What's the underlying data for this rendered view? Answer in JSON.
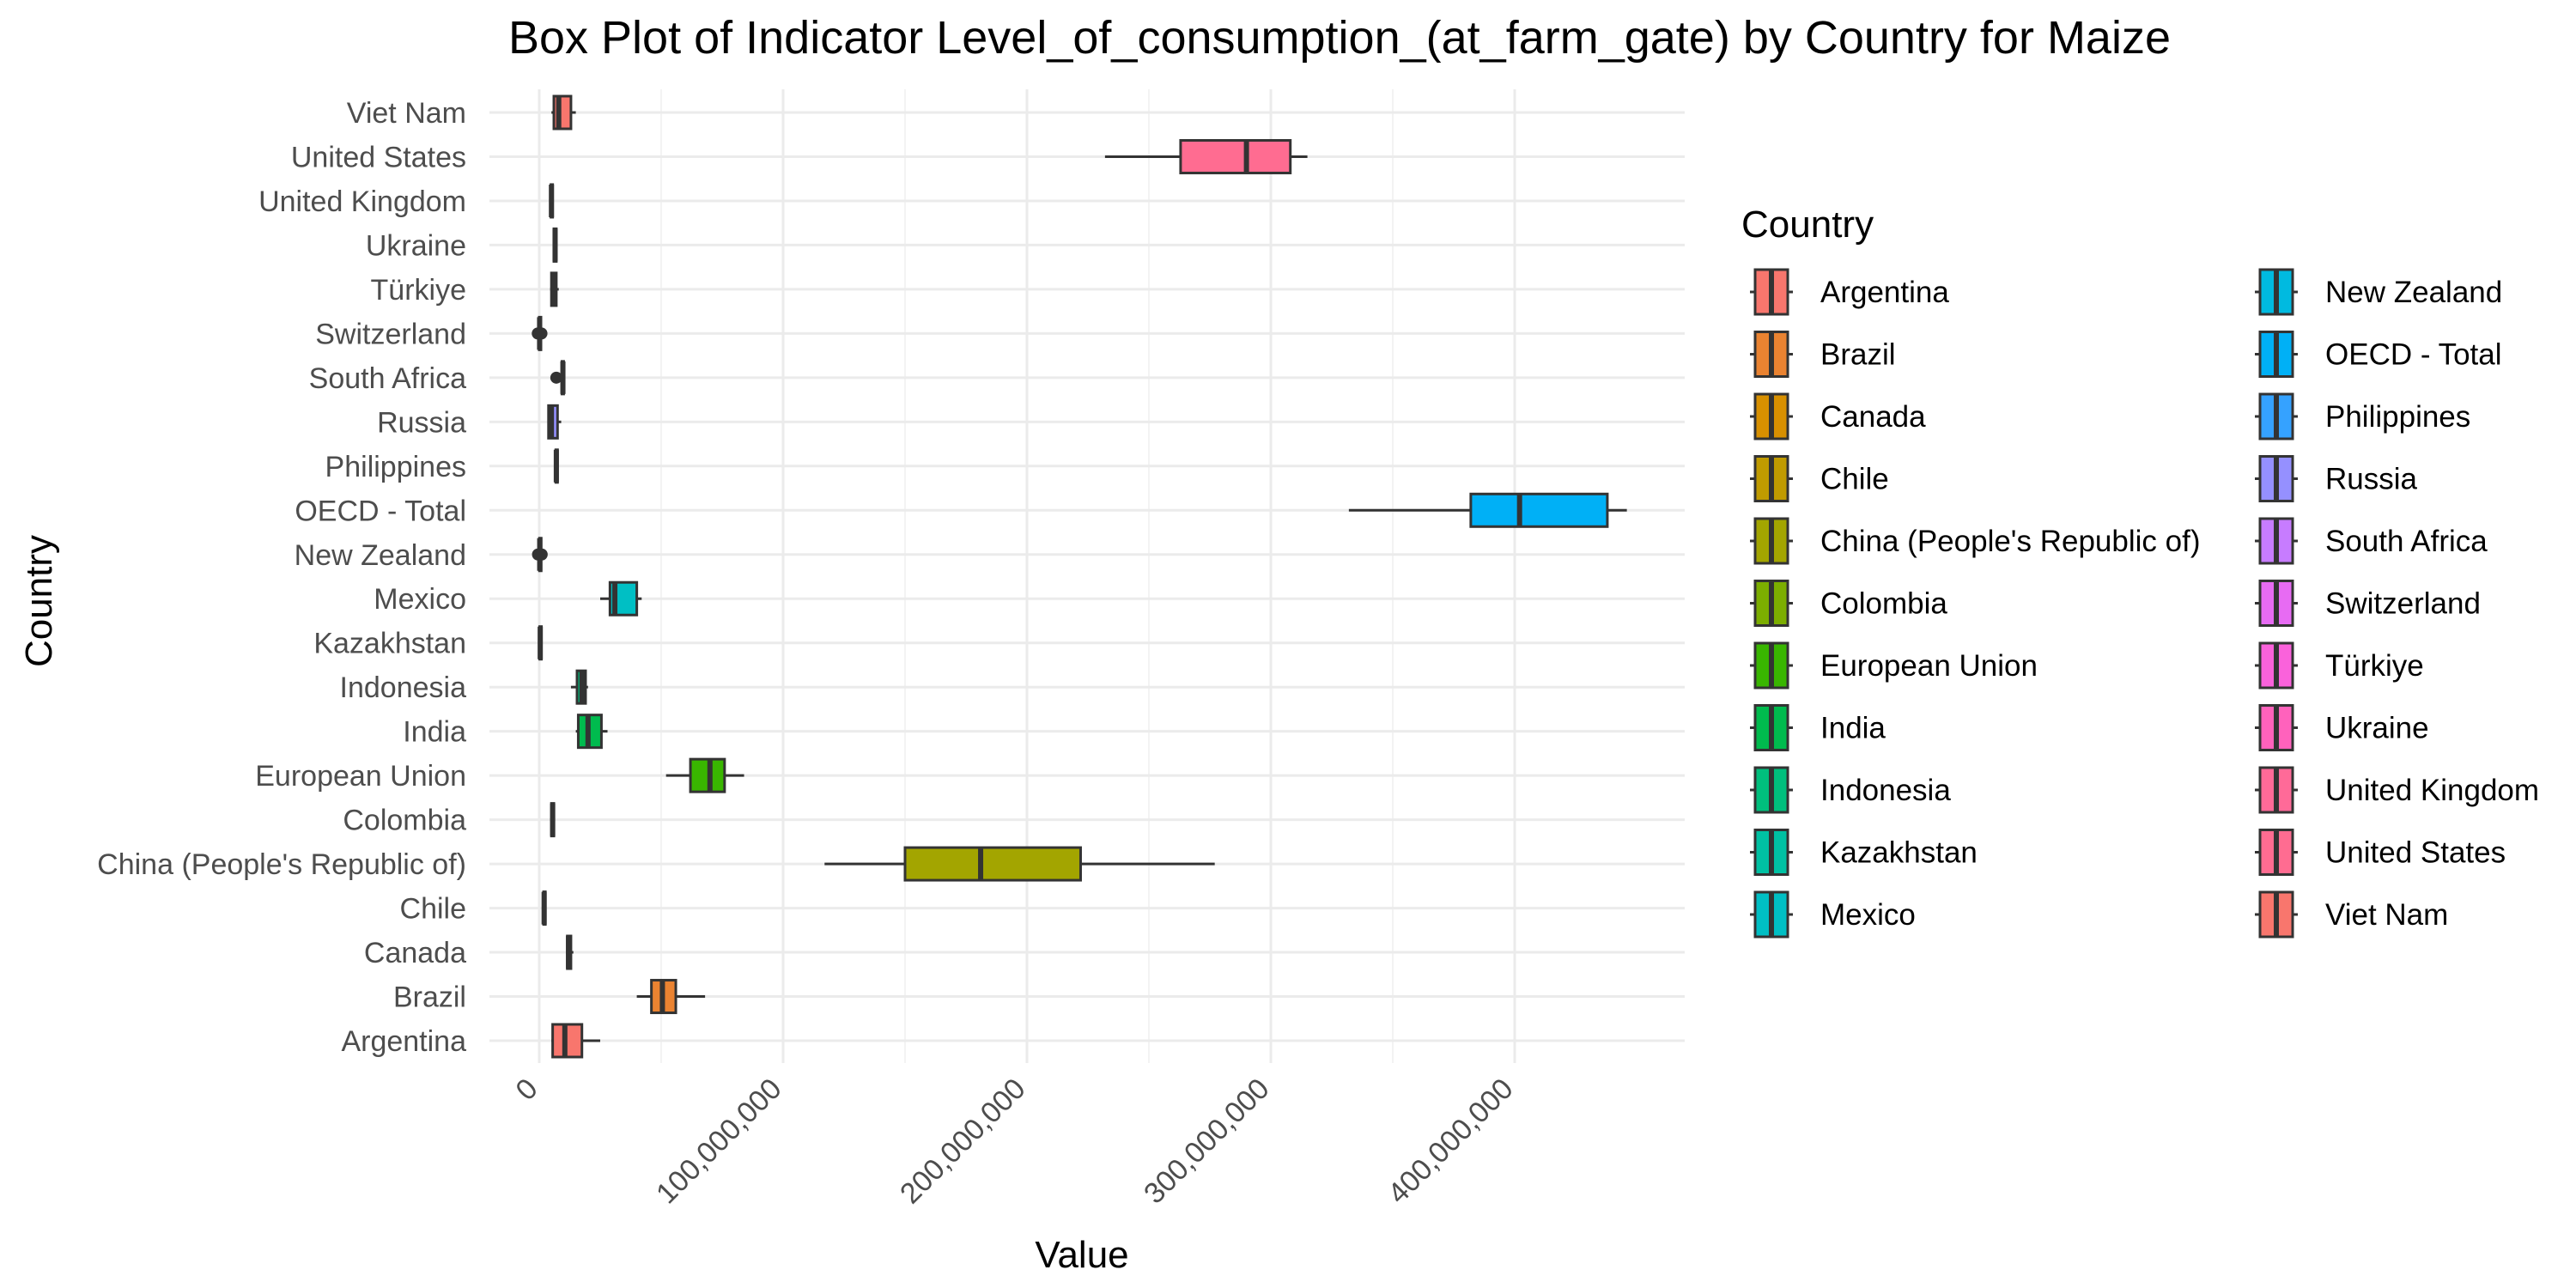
{
  "chart_data": {
    "type": "boxplot",
    "title": "Box Plot of Indicator Level_of_consumption_(at_farm_gate) by Country for Maize",
    "xlabel": "Value",
    "ylabel": "Country",
    "xlim": [
      -10000000,
      470000000
    ],
    "x_ticks": [
      0,
      100000000,
      200000000,
      300000000,
      400000000
    ],
    "x_tick_labels": [
      "0",
      "100,000,000",
      "200,000,000",
      "300,000,000",
      "400,000,000"
    ],
    "grid": true,
    "legend": {
      "title": "Country",
      "position": "right",
      "columns": 2
    },
    "categories": [
      "Argentina",
      "Brazil",
      "Canada",
      "Chile",
      "China (People's Republic of)",
      "Colombia",
      "European Union",
      "India",
      "Indonesia",
      "Kazakhstan",
      "Mexico",
      "New Zealand",
      "OECD - Total",
      "Philippines",
      "Russia",
      "South Africa",
      "Switzerland",
      "Türkiye",
      "Ukraine",
      "United Kingdom",
      "United States",
      "Viet Nam"
    ],
    "colors": [
      "#F8766D",
      "#EA8331",
      "#D89000",
      "#C09B00",
      "#A3A500",
      "#7CAE00",
      "#39B600",
      "#00BB4E",
      "#00BF7D",
      "#00C1A3",
      "#00BFC4",
      "#00BAE0",
      "#00B0F6",
      "#35A2FF",
      "#9590FF",
      "#C77CFF",
      "#E76BF3",
      "#FA62DB",
      "#FF62BC",
      "#FF6A98",
      "#FF6C91",
      "#F8766D"
    ],
    "series": [
      {
        "name": "Argentina",
        "min": 5000000,
        "q1": 5500000,
        "median": 10500000,
        "q3": 17500000,
        "max": 25000000,
        "outliers": []
      },
      {
        "name": "Brazil",
        "min": 40000000,
        "q1": 46000000,
        "median": 50500000,
        "q3": 56000000,
        "max": 68000000,
        "outliers": []
      },
      {
        "name": "Canada",
        "min": 11000000,
        "q1": 11500000,
        "median": 12000000,
        "q3": 13000000,
        "max": 14000000,
        "outliers": []
      },
      {
        "name": "Chile",
        "min": 1500000,
        "q1": 1800000,
        "median": 2000000,
        "q3": 2200000,
        "max": 2600000,
        "outliers": []
      },
      {
        "name": "China (People's Republic of)",
        "min": 117000000,
        "q1": 150000000,
        "median": 181000000,
        "q3": 222000000,
        "max": 277000000,
        "outliers": []
      },
      {
        "name": "Colombia",
        "min": 4500000,
        "q1": 5000000,
        "median": 5500000,
        "q3": 6000000,
        "max": 6500000,
        "outliers": []
      },
      {
        "name": "European Union",
        "min": 52000000,
        "q1": 62000000,
        "median": 70000000,
        "q3": 76000000,
        "max": 84000000,
        "outliers": []
      },
      {
        "name": "India",
        "min": 15000000,
        "q1": 16000000,
        "median": 20000000,
        "q3": 25500000,
        "max": 28000000,
        "outliers": []
      },
      {
        "name": "Indonesia",
        "min": 13000000,
        "q1": 15500000,
        "median": 17500000,
        "q3": 19000000,
        "max": 20000000,
        "outliers": []
      },
      {
        "name": "Kazakhstan",
        "min": 0,
        "q1": 200000,
        "median": 400000,
        "q3": 600000,
        "max": 900000,
        "outliers": []
      },
      {
        "name": "Mexico",
        "min": 25000000,
        "q1": 29000000,
        "median": 31000000,
        "q3": 40000000,
        "max": 42000000,
        "outliers": []
      },
      {
        "name": "New Zealand",
        "min": 0,
        "q1": 100000,
        "median": 200000,
        "q3": 300000,
        "max": 400000,
        "outliers": [
          -500000,
          1000000
        ]
      },
      {
        "name": "OECD - Total",
        "min": 332000000,
        "q1": 382000000,
        "median": 402000000,
        "q3": 438000000,
        "max": 446000000,
        "outliers": []
      },
      {
        "name": "Philippines",
        "min": 6500000,
        "q1": 6800000,
        "median": 7000000,
        "q3": 7400000,
        "max": 7800000,
        "outliers": []
      },
      {
        "name": "Russia",
        "min": 3500000,
        "q1": 3800000,
        "median": 5000000,
        "q3": 7500000,
        "max": 9000000,
        "outliers": []
      },
      {
        "name": "South Africa",
        "min": 9000000,
        "q1": 9300000,
        "median": 9700000,
        "q3": 10000000,
        "max": 10300000,
        "outliers": [
          7000000
        ]
      },
      {
        "name": "Switzerland",
        "min": -200000,
        "q1": 0,
        "median": 150000,
        "q3": 300000,
        "max": 500000,
        "outliers": [
          -600000,
          900000
        ]
      },
      {
        "name": "Türkiye",
        "min": 4500000,
        "q1": 5000000,
        "median": 6000000,
        "q3": 7000000,
        "max": 8000000,
        "outliers": []
      },
      {
        "name": "Ukraine",
        "min": 5500000,
        "q1": 6000000,
        "median": 6500000,
        "q3": 7000000,
        "max": 7500000,
        "outliers": []
      },
      {
        "name": "United Kingdom",
        "min": 4500000,
        "q1": 4800000,
        "median": 5000000,
        "q3": 5300000,
        "max": 5600000,
        "outliers": []
      },
      {
        "name": "United States",
        "min": 232000000,
        "q1": 263000000,
        "median": 290000000,
        "q3": 308000000,
        "max": 315000000,
        "outliers": []
      },
      {
        "name": "Viet Nam",
        "min": 5000000,
        "q1": 6000000,
        "median": 8000000,
        "q3": 13000000,
        "max": 15000000,
        "outliers": []
      }
    ]
  }
}
